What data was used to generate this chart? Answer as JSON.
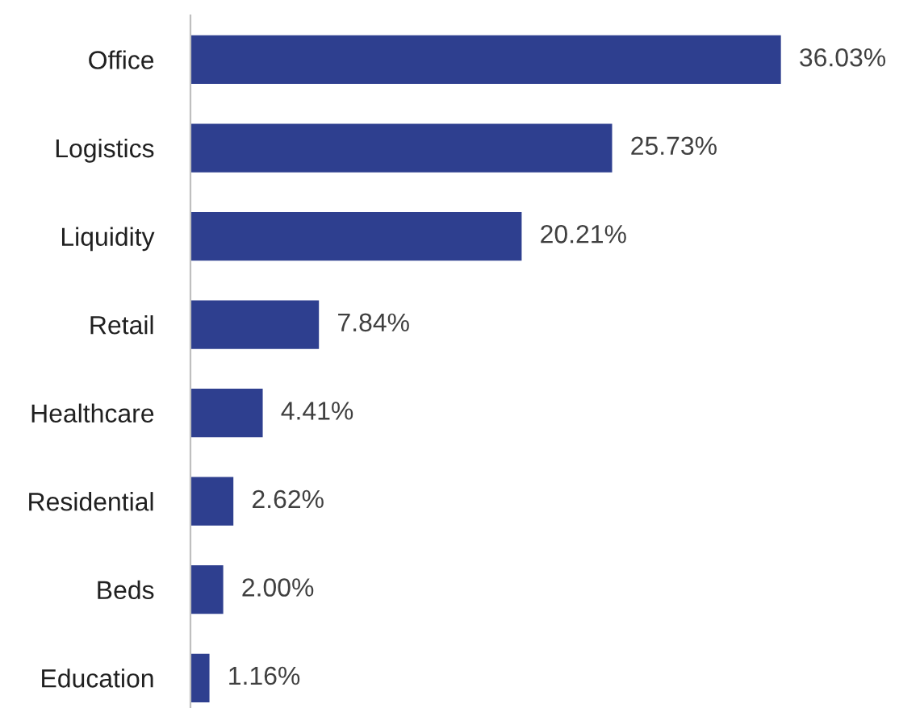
{
  "chart_data": {
    "type": "bar",
    "orientation": "horizontal",
    "categories": [
      "Office",
      "Logistics",
      "Liquidity",
      "Retail",
      "Healthcare",
      "Residential",
      "Beds",
      "Education"
    ],
    "values": [
      36.03,
      25.73,
      20.21,
      7.84,
      4.41,
      2.62,
      2.0,
      1.16
    ],
    "value_labels": [
      "36.03%",
      "25.73%",
      "20.21%",
      "7.84%",
      "4.41%",
      "2.62%",
      "2.00%",
      "1.16%"
    ],
    "color": "#2e3f8f",
    "grid": false,
    "legend": false
  }
}
